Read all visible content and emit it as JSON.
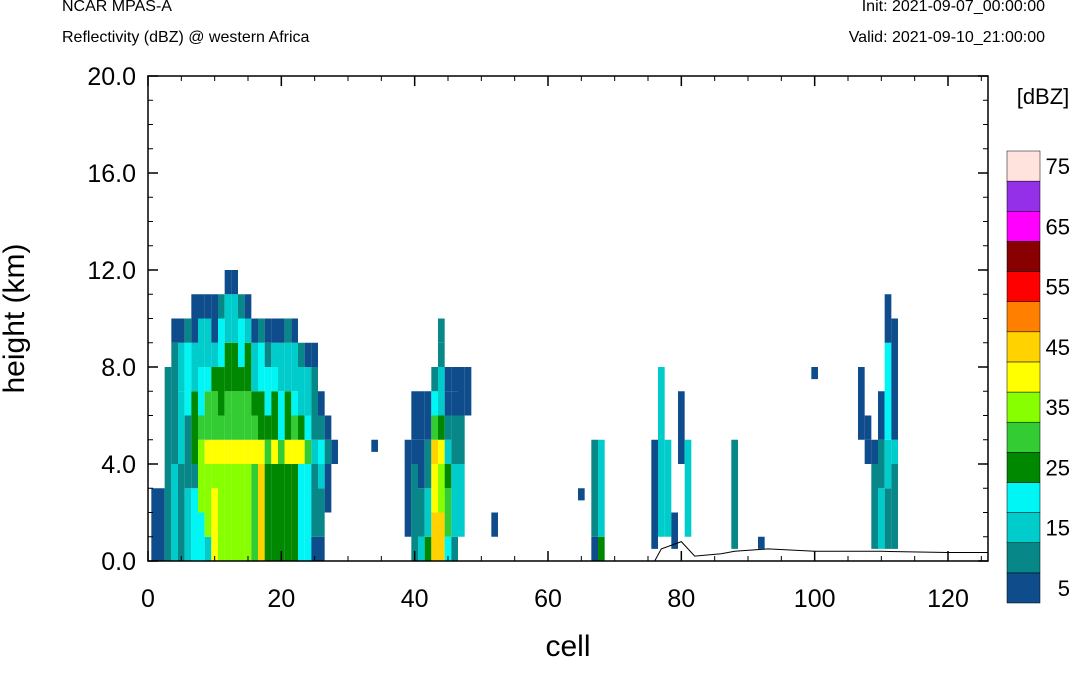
{
  "header": {
    "model": "NCAR MPAS-A",
    "subtitle": "Reflectivity (dBZ) @ western Africa",
    "init": "Init: 2021-09-07_00:00:00",
    "valid": "Valid: 2021-09-10_21:00:00"
  },
  "chart_data": {
    "type": "heatmap",
    "title": "Reflectivity (dBZ) @ western Africa",
    "xlabel": "cell",
    "ylabel": "height (km)",
    "xlim": [
      0,
      126
    ],
    "ylim": [
      0,
      20
    ],
    "x_ticks": [
      "0",
      "20",
      "40",
      "60",
      "80",
      "100",
      "120"
    ],
    "y_ticks": [
      "0.0",
      "4.0",
      "8.0",
      "12.0",
      "16.0",
      "20.0"
    ],
    "cell_height_km": 0.5,
    "colorbar": {
      "unit": "[dBZ]",
      "labels": [
        "5",
        "15",
        "25",
        "35",
        "45",
        "55",
        "65",
        "75"
      ],
      "levels": [
        5,
        10,
        15,
        20,
        25,
        30,
        35,
        40,
        45,
        50,
        55,
        60,
        65,
        70,
        75
      ],
      "colors": [
        "#0f4c8c",
        "#078787",
        "#00cccc",
        "#00f5f5",
        "#008800",
        "#33cc33",
        "#88ff00",
        "#ffff00",
        "#ffd200",
        "#ff8000",
        "#ff0000",
        "#880000",
        "#ff00ff",
        "#9430e8",
        "#ffe3dc"
      ]
    },
    "columns": [
      {
        "x": 1,
        "segs": [
          [
            0,
            3,
            1
          ]
        ]
      },
      {
        "x": 2,
        "segs": [
          [
            0,
            3,
            1
          ]
        ]
      },
      {
        "x": 3,
        "segs": [
          [
            0,
            8,
            2
          ]
        ]
      },
      {
        "x": 4,
        "segs": [
          [
            0,
            4,
            3
          ],
          [
            4,
            9,
            2
          ],
          [
            9,
            10,
            1
          ]
        ]
      },
      {
        "x": 5,
        "segs": [
          [
            0,
            4,
            2
          ],
          [
            4,
            7,
            3
          ],
          [
            7,
            9,
            3
          ],
          [
            9,
            10,
            1
          ]
        ]
      },
      {
        "x": 6,
        "segs": [
          [
            0,
            3,
            3
          ],
          [
            3,
            6,
            2
          ],
          [
            6,
            9,
            4
          ],
          [
            9,
            10,
            2
          ]
        ]
      },
      {
        "x": 7,
        "segs": [
          [
            0,
            3,
            4
          ],
          [
            3,
            4,
            2
          ],
          [
            4,
            7,
            5
          ],
          [
            7,
            9,
            3
          ],
          [
            9,
            11,
            1
          ]
        ]
      },
      {
        "x": 8,
        "segs": [
          [
            0,
            2,
            4
          ],
          [
            2,
            5,
            7
          ],
          [
            5,
            6,
            6
          ],
          [
            6,
            8,
            4
          ],
          [
            8,
            10,
            3
          ],
          [
            10,
            11,
            1
          ]
        ]
      },
      {
        "x": 9,
        "segs": [
          [
            0,
            1,
            3
          ],
          [
            1,
            4,
            7
          ],
          [
            4,
            5,
            8
          ],
          [
            5,
            7,
            6
          ],
          [
            7,
            8,
            4
          ],
          [
            8,
            10,
            3
          ],
          [
            10,
            11,
            1
          ]
        ]
      },
      {
        "x": 10,
        "segs": [
          [
            0,
            3,
            8
          ],
          [
            3,
            4,
            7
          ],
          [
            4,
            5,
            8
          ],
          [
            5,
            7,
            6
          ],
          [
            7,
            8,
            5
          ],
          [
            8,
            9,
            3
          ],
          [
            9,
            11,
            1
          ]
        ]
      },
      {
        "x": 11,
        "segs": [
          [
            0,
            4,
            7
          ],
          [
            4,
            5,
            8
          ],
          [
            5,
            6,
            6
          ],
          [
            6,
            8,
            5
          ],
          [
            8,
            10,
            4
          ],
          [
            10,
            11,
            2
          ]
        ]
      },
      {
        "x": 12,
        "segs": [
          [
            0,
            4,
            7
          ],
          [
            4,
            5,
            8
          ],
          [
            5,
            7,
            6
          ],
          [
            7,
            9,
            5
          ],
          [
            9,
            11,
            3
          ],
          [
            11,
            12,
            1
          ]
        ]
      },
      {
        "x": 13,
        "segs": [
          [
            0,
            4,
            7
          ],
          [
            4,
            5,
            8
          ],
          [
            5,
            7,
            6
          ],
          [
            7,
            9,
            5
          ],
          [
            9,
            11,
            3
          ],
          [
            11,
            12,
            1
          ]
        ]
      },
      {
        "x": 14,
        "segs": [
          [
            0,
            4,
            7
          ],
          [
            4,
            5,
            8
          ],
          [
            5,
            7,
            6
          ],
          [
            7,
            8,
            5
          ],
          [
            8,
            10,
            4
          ],
          [
            10,
            11,
            2
          ]
        ]
      },
      {
        "x": 15,
        "segs": [
          [
            0,
            4,
            7
          ],
          [
            4,
            5,
            8
          ],
          [
            5,
            7,
            6
          ],
          [
            7,
            9,
            5
          ],
          [
            9,
            10,
            3
          ],
          [
            10,
            11,
            1
          ]
        ]
      },
      {
        "x": 16,
        "segs": [
          [
            0,
            4,
            6
          ],
          [
            4,
            5,
            8
          ],
          [
            5,
            6,
            6
          ],
          [
            6,
            7,
            5
          ],
          [
            7,
            9,
            3
          ],
          [
            9,
            10,
            1
          ]
        ]
      },
      {
        "x": 17,
        "segs": [
          [
            0,
            4,
            9
          ],
          [
            4,
            5,
            8
          ],
          [
            5,
            7,
            5
          ],
          [
            7,
            9,
            4
          ],
          [
            9,
            10,
            2
          ]
        ]
      },
      {
        "x": 18,
        "segs": [
          [
            0,
            4,
            5
          ],
          [
            4,
            5,
            6
          ],
          [
            5,
            6,
            5
          ],
          [
            6,
            8,
            4
          ],
          [
            8,
            9,
            2
          ],
          [
            9,
            10,
            1
          ]
        ]
      },
      {
        "x": 19,
        "segs": [
          [
            0,
            4,
            5
          ],
          [
            4,
            5,
            8
          ],
          [
            5,
            7,
            5
          ],
          [
            7,
            8,
            4
          ],
          [
            8,
            9,
            3
          ],
          [
            9,
            10,
            1
          ]
        ]
      },
      {
        "x": 20,
        "segs": [
          [
            0,
            4,
            5
          ],
          [
            4,
            5,
            6
          ],
          [
            5,
            7,
            4
          ],
          [
            7,
            9,
            3
          ],
          [
            9,
            10,
            1
          ]
        ]
      },
      {
        "x": 21,
        "segs": [
          [
            0,
            4,
            5
          ],
          [
            4,
            5,
            8
          ],
          [
            5,
            7,
            5
          ],
          [
            7,
            9,
            3
          ],
          [
            9,
            10,
            2
          ]
        ]
      },
      {
        "x": 22,
        "segs": [
          [
            0,
            4,
            5
          ],
          [
            4,
            5,
            8
          ],
          [
            5,
            6,
            6
          ],
          [
            6,
            7,
            4
          ],
          [
            7,
            9,
            3
          ],
          [
            9,
            10,
            1
          ]
        ]
      },
      {
        "x": 23,
        "segs": [
          [
            0,
            4,
            4
          ],
          [
            4,
            5,
            8
          ],
          [
            5,
            6,
            5
          ],
          [
            6,
            8,
            3
          ],
          [
            8,
            9,
            2
          ]
        ]
      },
      {
        "x": 24,
        "segs": [
          [
            0,
            4,
            4
          ],
          [
            4,
            5,
            6
          ],
          [
            5,
            6,
            4
          ],
          [
            6,
            8,
            3
          ],
          [
            8,
            9,
            1
          ]
        ]
      },
      {
        "x": 25,
        "segs": [
          [
            0,
            1,
            1
          ],
          [
            1,
            4,
            2
          ],
          [
            4,
            5,
            3
          ],
          [
            5,
            8,
            2
          ],
          [
            8,
            9,
            1
          ]
        ]
      },
      {
        "x": 26,
        "segs": [
          [
            0,
            1,
            1
          ],
          [
            1,
            3,
            2
          ],
          [
            3,
            4,
            3
          ],
          [
            4,
            5,
            4
          ],
          [
            5,
            6,
            2
          ],
          [
            6,
            7,
            1
          ]
        ]
      },
      {
        "x": 27,
        "segs": [
          [
            2,
            4,
            1
          ],
          [
            4,
            5,
            2
          ],
          [
            5,
            6,
            1
          ]
        ]
      },
      {
        "x": 28,
        "segs": [
          [
            4,
            5,
            1
          ]
        ]
      },
      {
        "x": 34,
        "segs": [
          [
            4.5,
            5,
            1
          ]
        ]
      },
      {
        "x": 39,
        "segs": [
          [
            1,
            4,
            1
          ],
          [
            4,
            5,
            1
          ]
        ]
      },
      {
        "x": 40,
        "segs": [
          [
            0,
            2,
            2
          ],
          [
            2,
            4,
            2
          ],
          [
            4,
            5,
            1
          ],
          [
            5,
            7,
            1
          ]
        ]
      },
      {
        "x": 41,
        "segs": [
          [
            0,
            1,
            3
          ],
          [
            1,
            3,
            2
          ],
          [
            3,
            5,
            1
          ],
          [
            5,
            7,
            1
          ]
        ]
      },
      {
        "x": 42,
        "segs": [
          [
            0,
            1,
            5
          ],
          [
            1,
            3,
            3
          ],
          [
            3,
            5,
            2
          ],
          [
            5,
            7,
            1
          ]
        ]
      },
      {
        "x": 43,
        "segs": [
          [
            0,
            2,
            9
          ],
          [
            2,
            4,
            8
          ],
          [
            4,
            5,
            9
          ],
          [
            5,
            6,
            6
          ],
          [
            6,
            7,
            4
          ],
          [
            7,
            8,
            2
          ]
        ]
      },
      {
        "x": 44,
        "segs": [
          [
            0,
            2,
            9
          ],
          [
            2,
            4,
            7
          ],
          [
            4,
            5,
            8
          ],
          [
            5,
            6,
            5
          ],
          [
            6,
            8,
            3
          ],
          [
            8,
            9,
            2
          ],
          [
            9,
            10,
            2
          ]
        ]
      },
      {
        "x": 45,
        "segs": [
          [
            0,
            1,
            4
          ],
          [
            1,
            3,
            6
          ],
          [
            3,
            4,
            5
          ],
          [
            4,
            5,
            3
          ],
          [
            5,
            6,
            2
          ],
          [
            6,
            7,
            1
          ],
          [
            7,
            8,
            1
          ]
        ]
      },
      {
        "x": 46,
        "segs": [
          [
            0,
            1,
            2
          ],
          [
            1,
            4,
            3
          ],
          [
            4,
            6,
            2
          ],
          [
            6,
            7,
            1
          ],
          [
            7,
            8,
            1
          ]
        ]
      },
      {
        "x": 47,
        "segs": [
          [
            1,
            4,
            3
          ],
          [
            4,
            6,
            2
          ],
          [
            6,
            8,
            1
          ]
        ]
      },
      {
        "x": 48,
        "segs": [
          [
            6,
            8,
            1
          ]
        ]
      },
      {
        "x": 52,
        "segs": [
          [
            1,
            2,
            1
          ]
        ]
      },
      {
        "x": 65,
        "segs": [
          [
            2.5,
            3,
            1
          ]
        ]
      },
      {
        "x": 67,
        "segs": [
          [
            0,
            1,
            1
          ],
          [
            1,
            5,
            2
          ]
        ]
      },
      {
        "x": 68,
        "segs": [
          [
            0,
            1,
            5
          ],
          [
            1,
            4,
            3
          ],
          [
            4,
            5,
            3
          ]
        ]
      },
      {
        "x": 76,
        "segs": [
          [
            0.5,
            5,
            1
          ]
        ]
      },
      {
        "x": 77,
        "segs": [
          [
            1,
            4,
            3
          ],
          [
            4,
            6,
            3
          ],
          [
            6,
            8,
            3
          ]
        ]
      },
      {
        "x": 78,
        "segs": [
          [
            1,
            5,
            3
          ]
        ]
      },
      {
        "x": 79,
        "segs": [
          [
            0.5,
            2,
            1
          ]
        ]
      },
      {
        "x": 80,
        "segs": [
          [
            4,
            7,
            1
          ]
        ]
      },
      {
        "x": 81,
        "segs": [
          [
            1,
            5,
            3
          ]
        ]
      },
      {
        "x": 88,
        "segs": [
          [
            0.5,
            5,
            2
          ]
        ]
      },
      {
        "x": 92,
        "segs": [
          [
            0.5,
            1,
            1
          ]
        ]
      },
      {
        "x": 100,
        "segs": [
          [
            7.5,
            8,
            1
          ]
        ]
      },
      {
        "x": 107,
        "segs": [
          [
            5,
            8,
            1
          ]
        ]
      },
      {
        "x": 108,
        "segs": [
          [
            4,
            5,
            1
          ],
          [
            5,
            6,
            1
          ]
        ]
      },
      {
        "x": 109,
        "segs": [
          [
            0.5,
            4,
            2
          ],
          [
            4,
            5,
            1
          ]
        ]
      },
      {
        "x": 110,
        "segs": [
          [
            0.5,
            3,
            3
          ],
          [
            3,
            5,
            2
          ],
          [
            5,
            7,
            1
          ]
        ]
      },
      {
        "x": 111,
        "segs": [
          [
            0.5,
            3,
            2
          ],
          [
            3,
            5,
            3
          ],
          [
            5,
            9,
            4
          ],
          [
            9,
            11,
            1
          ]
        ]
      },
      {
        "x": 112,
        "segs": [
          [
            0.5,
            4,
            2
          ],
          [
            4,
            5,
            3
          ],
          [
            5,
            10,
            1
          ]
        ]
      }
    ],
    "terrain": [
      [
        0,
        0
      ],
      [
        76,
        0
      ],
      [
        77,
        0.5
      ],
      [
        80,
        0.8
      ],
      [
        82,
        0.2
      ],
      [
        86,
        0.3
      ],
      [
        88,
        0.4
      ],
      [
        93,
        0.5
      ],
      [
        100,
        0.4
      ],
      [
        110,
        0.4
      ],
      [
        120,
        0.35
      ],
      [
        126,
        0.35
      ]
    ]
  }
}
